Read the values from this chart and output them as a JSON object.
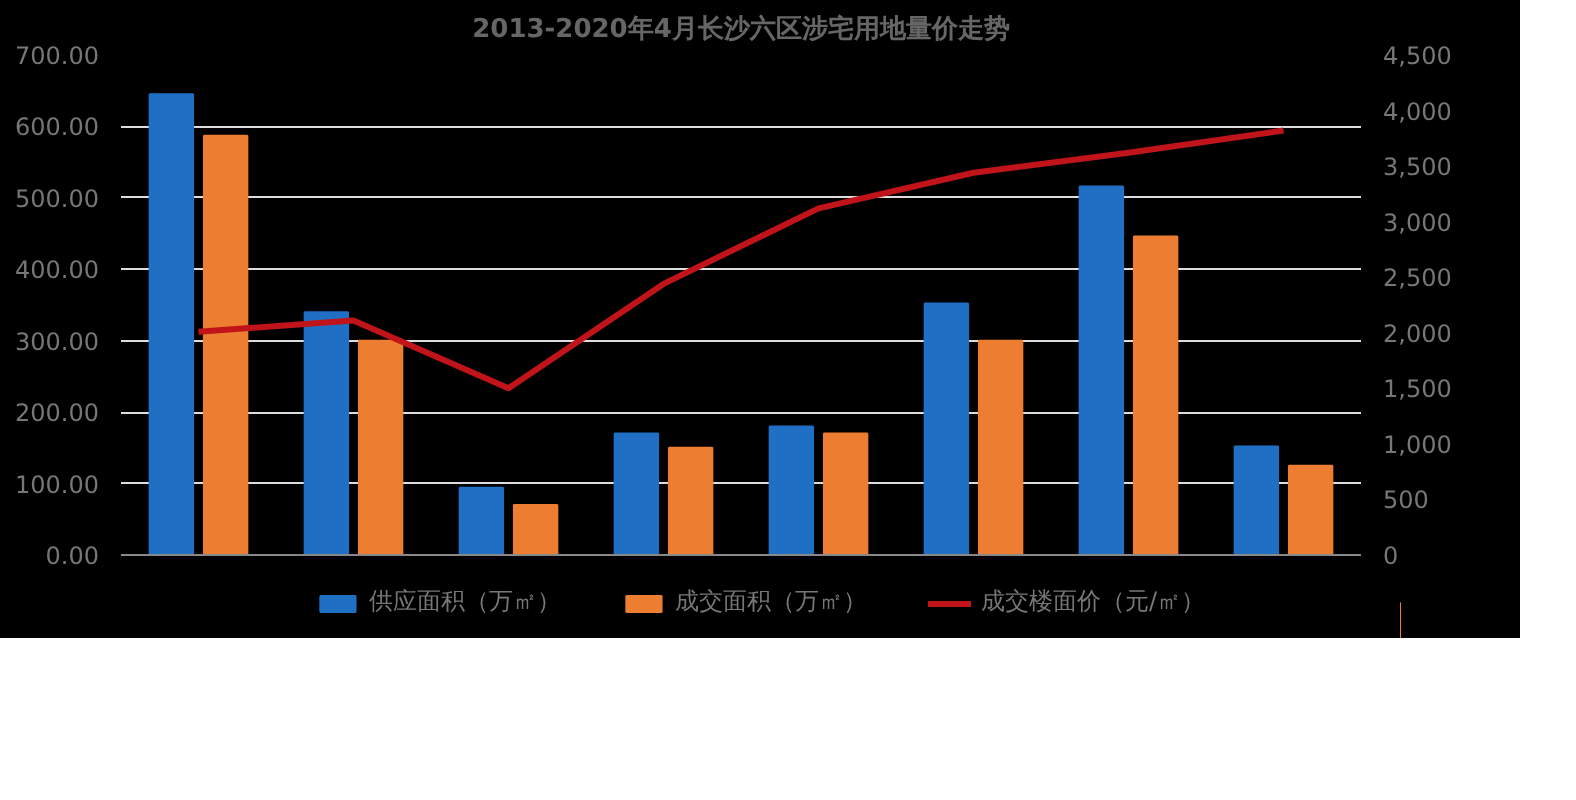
{
  "chart_data": {
    "type": "bar",
    "title": "2013-2020年4月长沙六区涉宅用地量价走势",
    "categories": [
      null,
      null,
      null,
      null,
      null,
      null,
      null,
      null
    ],
    "series": [
      {
        "name": "供应面积（万㎡）",
        "color": "#1f6fc5",
        "values": [
          645,
          340,
          94,
          170,
          180,
          352,
          516,
          152
        ]
      },
      {
        "name": "成交面积（万㎡）",
        "color": "#ed7d31",
        "values": [
          587,
          300,
          70,
          150,
          170,
          300,
          446,
          125
        ]
      },
      {
        "name": "成交楼面价（元/㎡）",
        "color": "#c0141a",
        "type": "line",
        "axis": "y2",
        "values": [
          2010,
          2110,
          1500,
          2440,
          3120,
          3440,
          3620,
          3820
        ]
      }
    ],
    "ylim": [
      0,
      700
    ],
    "yticks": [
      {
        "value": 0,
        "label": "0.00"
      },
      {
        "value": 100,
        "label": "100.00"
      },
      {
        "value": 200,
        "label": "200.00"
      },
      {
        "value": 300,
        "label": "300.00"
      },
      {
        "value": 400,
        "label": "400.00"
      },
      {
        "value": 500,
        "label": "500.00"
      },
      {
        "value": 600,
        "label": "600.00"
      },
      {
        "value": 700,
        "label": "700.00"
      }
    ],
    "y2lim": [
      0,
      4500
    ],
    "y2ticks": [
      0,
      500,
      {
        "value": 1000,
        "label": "1,000"
      },
      {
        "value": 1500,
        "label": "1,500"
      },
      {
        "value": 2000,
        "label": "2,000"
      },
      {
        "value": 2500,
        "label": "2,500"
      },
      {
        "value": 3000,
        "label": "3,000"
      },
      {
        "value": 3500,
        "label": "3,500"
      },
      {
        "value": 4000,
        "label": "4,000"
      },
      {
        "value": 4500,
        "label": "4,500"
      }
    ],
    "grid": "y",
    "legend": "bottom"
  }
}
